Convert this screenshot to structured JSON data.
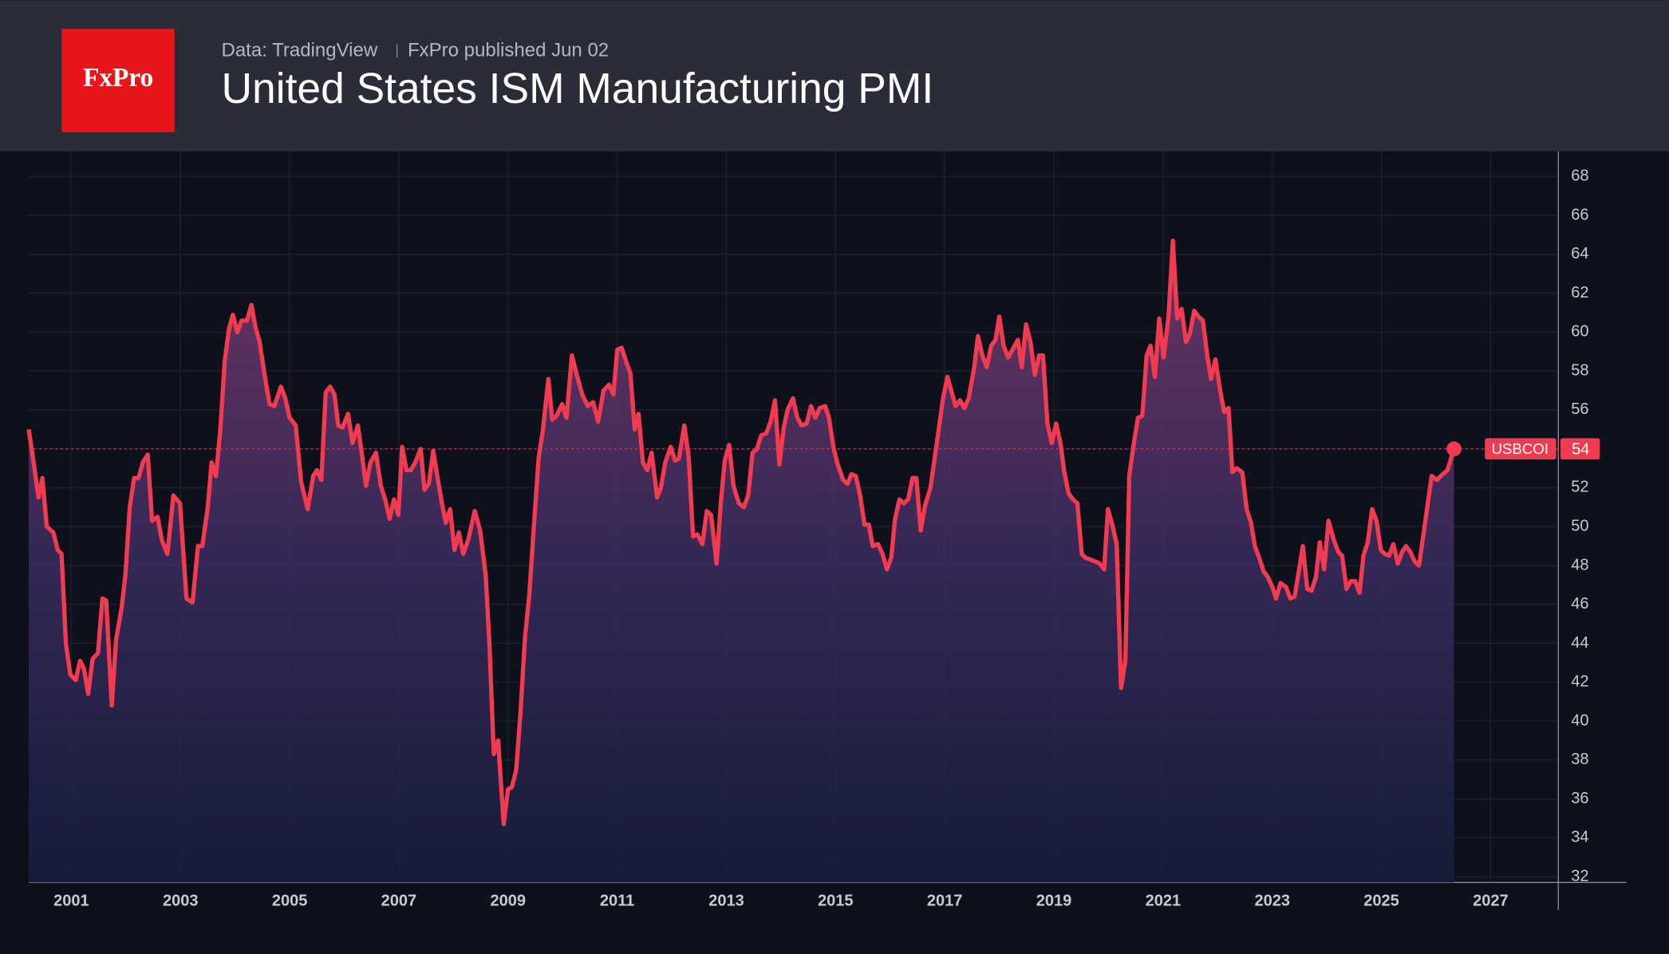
{
  "chart_data": {
    "type": "area-line",
    "logo": "FxPro",
    "source": "Data: TradingView",
    "publisher": "FxPro published Jun 02",
    "title": "United States ISM Manufacturing PMI",
    "x": [
      2000.22,
      2000.3,
      2000.4,
      2000.47,
      2000.55,
      2000.67,
      2000.75,
      2000.82,
      2000.9,
      2000.98,
      2001.08,
      2001.16,
      2001.23,
      2001.31,
      2001.39,
      2001.49,
      2001.57,
      2001.64,
      2001.74,
      2001.82,
      2001.92,
      2001.99,
      2002.07,
      2002.15,
      2002.23,
      2002.31,
      2002.4,
      2002.48,
      2002.58,
      2002.66,
      2002.76,
      2002.87,
      2002.99,
      2003.11,
      2003.22,
      2003.32,
      2003.4,
      2003.5,
      2003.57,
      2003.65,
      2003.73,
      2003.81,
      2003.89,
      2003.96,
      2004.04,
      2004.12,
      2004.22,
      2004.3,
      2004.37,
      2004.45,
      2004.53,
      2004.63,
      2004.72,
      2004.84,
      2004.92,
      2005.0,
      2005.11,
      2005.21,
      2005.33,
      2005.43,
      2005.5,
      2005.58,
      2005.66,
      2005.74,
      2005.82,
      2005.89,
      2005.97,
      2006.07,
      2006.15,
      2006.25,
      2006.32,
      2006.4,
      2006.48,
      2006.58,
      2006.67,
      2006.75,
      2006.83,
      2006.91,
      2006.99,
      2007.06,
      2007.14,
      2007.22,
      2007.3,
      2007.4,
      2007.47,
      2007.55,
      2007.63,
      2007.71,
      2007.79,
      2007.86,
      2007.94,
      2008.02,
      2008.1,
      2008.18,
      2008.27,
      2008.39,
      2008.49,
      2008.59,
      2008.66,
      2008.74,
      2008.82,
      2008.92,
      2009.0,
      2009.07,
      2009.15,
      2009.23,
      2009.31,
      2009.39,
      2009.46,
      2009.56,
      2009.64,
      2009.74,
      2009.81,
      2009.89,
      2009.99,
      2010.07,
      2010.17,
      2010.26,
      2010.36,
      2010.46,
      2010.56,
      2010.65,
      2010.75,
      2010.85,
      2010.93,
      2011.0,
      2011.08,
      2011.16,
      2011.24,
      2011.32,
      2011.39,
      2011.47,
      2011.55,
      2011.63,
      2011.73,
      2011.8,
      2011.88,
      2011.98,
      2012.06,
      2012.13,
      2012.23,
      2012.31,
      2012.39,
      2012.47,
      2012.56,
      2012.64,
      2012.72,
      2012.82,
      2012.9,
      2012.97,
      2013.05,
      2013.13,
      2013.23,
      2013.32,
      2013.4,
      2013.48,
      2013.56,
      2013.64,
      2013.73,
      2013.81,
      2013.89,
      2013.97,
      2014.05,
      2014.12,
      2014.22,
      2014.3,
      2014.38,
      2014.47,
      2014.55,
      2014.63,
      2014.71,
      2014.81,
      2014.88,
      2014.96,
      2015.04,
      2015.14,
      2015.22,
      2015.29,
      2015.37,
      2015.45,
      2015.53,
      2015.61,
      2015.68,
      2015.78,
      2015.86,
      2015.94,
      2016.02,
      2016.09,
      2016.17,
      2016.25,
      2016.33,
      2016.41,
      2016.48,
      2016.56,
      2016.64,
      2016.74,
      2016.81,
      2016.89,
      2016.97,
      2017.05,
      2017.13,
      2017.2,
      2017.28,
      2017.36,
      2017.44,
      2017.54,
      2017.61,
      2017.69,
      2017.77,
      2017.85,
      2017.93,
      2018.0,
      2018.08,
      2018.16,
      2018.26,
      2018.34,
      2018.41,
      2018.49,
      2018.57,
      2018.65,
      2018.73,
      2018.8,
      2018.88,
      2018.96,
      2019.04,
      2019.12,
      2019.19,
      2019.27,
      2019.35,
      2019.43,
      2019.51,
      2019.58,
      2019.68,
      2019.76,
      2019.84,
      2019.92,
      2019.99,
      2020.07,
      2020.15,
      2020.23,
      2020.31,
      2020.38,
      2020.46,
      2020.54,
      2020.62,
      2020.7,
      2020.77,
      2020.85,
      2020.93,
      2021.01,
      2021.1,
      2021.18,
      2021.26,
      2021.34,
      2021.42,
      2021.49,
      2021.57,
      2021.65,
      2021.73,
      2021.81,
      2021.88,
      2021.96,
      2022.04,
      2022.12,
      2022.2,
      2022.27,
      2022.35,
      2022.45,
      2022.53,
      2022.61,
      2022.68,
      2022.76,
      2022.84,
      2022.92,
      2023.0,
      2023.07,
      2023.15,
      2023.25,
      2023.33,
      2023.41,
      2023.48,
      2023.56,
      2023.64,
      2023.72,
      2023.8,
      2023.87,
      2023.95,
      2024.03,
      2024.13,
      2024.21,
      2024.28,
      2024.36,
      2024.44,
      2024.52,
      2024.6,
      2024.67,
      2024.75,
      2024.83,
      2024.91,
      2024.99,
      2025.06,
      2025.14,
      2025.22,
      2025.3,
      2025.38,
      2025.45,
      2025.53,
      2025.61,
      2025.69,
      2025.92,
      2026.02,
      2026.12,
      2026.21,
      2026.33
    ],
    "series": [
      {
        "name": "USBCOI",
        "color": "#f23b51",
        "values": [
          55,
          53.5,
          51.5,
          52.5,
          50,
          49.7,
          48.8,
          48.6,
          44,
          42.4,
          42.1,
          43.1,
          42.7,
          41.4,
          43.2,
          43.5,
          46.3,
          46.2,
          40.8,
          44.2,
          45.8,
          47.5,
          51,
          52.5,
          52.5,
          53.3,
          53.7,
          50.3,
          50.5,
          49.3,
          48.6,
          51.6,
          51.2,
          46.3,
          46.1,
          49,
          49,
          51,
          53.3,
          52.6,
          55,
          58.5,
          60.2,
          60.9,
          60,
          60.6,
          60.6,
          61.4,
          60.3,
          59.5,
          58,
          56.3,
          56.2,
          57.2,
          56.6,
          55.6,
          55.2,
          52.3,
          50.9,
          52.6,
          52.9,
          52.4,
          56.9,
          57.2,
          56.8,
          55.2,
          55.1,
          55.8,
          54.3,
          55.2,
          53.8,
          52.1,
          53.3,
          53.8,
          52.1,
          51.4,
          50.4,
          51.4,
          50.6,
          54.1,
          52.9,
          52.9,
          53.3,
          54,
          51.9,
          52.2,
          53.9,
          52.5,
          51.2,
          50.2,
          50.9,
          48.8,
          49.7,
          48.6,
          49.3,
          50.8,
          49.8,
          47.5,
          44,
          38.3,
          39,
          34.7,
          36.5,
          36.6,
          37.5,
          40.5,
          44.3,
          46.5,
          49.5,
          53.5,
          55,
          57.6,
          55.5,
          55.7,
          56.3,
          55.6,
          58.8,
          57.8,
          56.8,
          56.2,
          56.4,
          55.4,
          57,
          57.3,
          56.8,
          59.1,
          59.2,
          58.5,
          57.9,
          55,
          55.8,
          53.3,
          52.9,
          53.8,
          51.5,
          52,
          53.3,
          54.1,
          53.4,
          53.5,
          55.2,
          53.6,
          49.5,
          49.6,
          49.1,
          50.8,
          50.6,
          48.1,
          51.3,
          53.4,
          54.2,
          52.1,
          51.2,
          51,
          51.6,
          53.8,
          54,
          54.7,
          54.8,
          55.4,
          56.5,
          53.2,
          55.1,
          56,
          56.6,
          55.6,
          55.2,
          55.3,
          56.2,
          55.6,
          56.1,
          56.2,
          55.6,
          54.1,
          53.2,
          52.4,
          52.2,
          52.7,
          52.6,
          51.6,
          50.1,
          50.1,
          49,
          49.1,
          48.6,
          47.8,
          48.4,
          50.4,
          51.4,
          51.2,
          51.4,
          52.5,
          52.5,
          49.8,
          51.1,
          52,
          53.4,
          55,
          56.6,
          57.7,
          56.9,
          56.2,
          56.5,
          56.1,
          56.6,
          58.2,
          59.8,
          58.8,
          58.2,
          59.3,
          59.6,
          60.8,
          59.3,
          58.7,
          59.2,
          59.6,
          58.2,
          60.4,
          59.5,
          57.8,
          58.8,
          58.8,
          55.3,
          54.3,
          55.3,
          54.3,
          52.8,
          51.7,
          51.4,
          51.2,
          48.6,
          48.4,
          48.3,
          48.2,
          48.1,
          47.8,
          50.9,
          50.1,
          49.1,
          41.7,
          43.1,
          52.6,
          54.2,
          55.6,
          55.7,
          58.8,
          59.3,
          57.7,
          60.7,
          58.7,
          60.8,
          64.7,
          60.7,
          61.2,
          59.5,
          59.9,
          61.1,
          60.8,
          60.6,
          58.8,
          57.6,
          58.6,
          57.1,
          55.9,
          56.1,
          52.8,
          53,
          52.8,
          50.9,
          50.2,
          49,
          48.4,
          47.7,
          47.4,
          46.9,
          46.3,
          47.1,
          46.9,
          46.3,
          46.4,
          47.6,
          49,
          46.8,
          46.7,
          47.4,
          49.2,
          47.8,
          50.3,
          49.3,
          48.7,
          48.5,
          46.8,
          47.2,
          47.2,
          46.6,
          48.5,
          49.2,
          50.9,
          50.3,
          48.8,
          48.6,
          48.5,
          49.1,
          48.1,
          48.7,
          49,
          48.7,
          48.2,
          48,
          52.6,
          52.4,
          52.7,
          52.9,
          54
        ]
      }
    ],
    "xlim": [
      2000.22,
      2028.24
    ],
    "ylim": [
      31.7,
      69.3
    ],
    "xticks": [
      2001,
      2003,
      2005,
      2007,
      2009,
      2011,
      2013,
      2015,
      2017,
      2019,
      2021,
      2023,
      2025,
      2027
    ],
    "yticks": [
      32,
      34,
      36,
      38,
      40,
      42,
      44,
      46,
      48,
      50,
      52,
      54,
      56,
      58,
      60,
      62,
      64,
      66,
      68
    ],
    "grid": true
  }
}
